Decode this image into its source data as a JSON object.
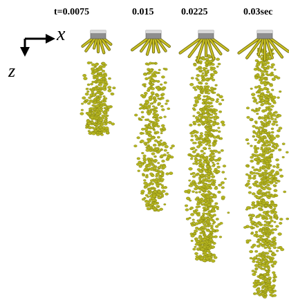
{
  "time_labels": [
    "t=0.0075",
    "0.015",
    "0.0225",
    "0.03sec"
  ],
  "axes": {
    "x_label": "x",
    "z_label": "z"
  },
  "colors": {
    "droplet": "#b5b520",
    "droplet_edge": "#7a7a10",
    "nozzle_top": "#d8d8d8",
    "nozzle_body": "#8e8e8e",
    "jet": "#c9c024",
    "jet_edge": "#6f6a10"
  }
}
